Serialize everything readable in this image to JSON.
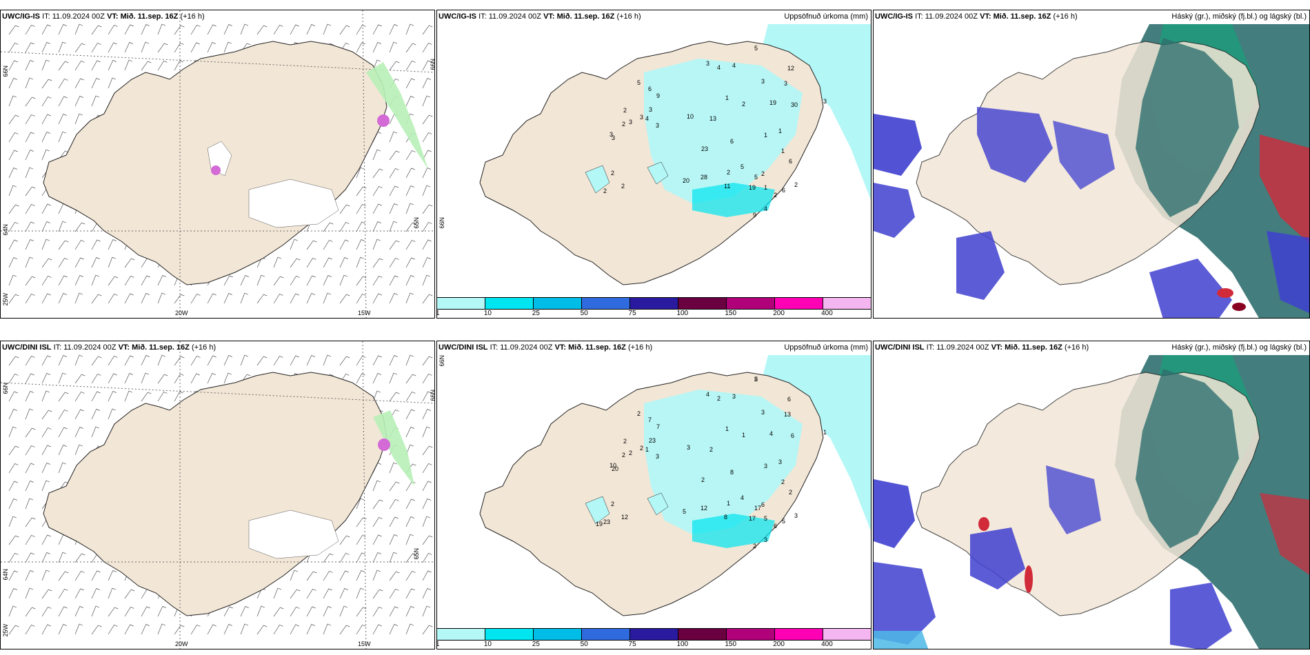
{
  "rows": [
    {
      "model": "UWC/IG-IS",
      "panels": [
        {
          "kind": "wind",
          "model": "UWC/IG-IS",
          "it_label": "IT:",
          "it": "11.09.2024 00Z",
          "vt_label": "VT:",
          "vt": "Mið. 11.sep. 16Z",
          "lead": "(+16 h)",
          "right_title": "",
          "lat_labels": [
            "66N",
            "64N",
            "65N",
            "66N"
          ],
          "lon_labels": [
            "20W",
            "15W"
          ],
          "side_label": "25W"
        },
        {
          "kind": "precip",
          "model": "UWC/IG-IS",
          "it_label": "IT:",
          "it": "11.09.2024 00Z",
          "vt_label": "VT:",
          "vt": "Mið. 11.sep. 16Z",
          "lead": "(+16 h)",
          "right_title": "Uppsöfnuð úrkoma (mm)",
          "precip_values": [
            "5",
            "3",
            "4",
            "4",
            "1",
            "2",
            "3",
            "3",
            "5",
            "6",
            "9",
            "12",
            "2",
            "3",
            "3",
            "4",
            "2",
            "3",
            "3",
            "3",
            "10",
            "3",
            "13",
            "6",
            "19",
            "30",
            "3",
            "1",
            "1",
            "6",
            "5",
            "2",
            "1",
            "23",
            "2",
            "5",
            "1",
            "2",
            "6",
            "2",
            "9",
            "4",
            "2",
            "20",
            "28",
            "11",
            "19",
            "2",
            "2"
          ],
          "lat_labels": [
            "66N"
          ]
        },
        {
          "kind": "cloud",
          "model": "UWC/IG-IS",
          "it_label": "IT:",
          "it": "11.09.2024 00Z",
          "vt_label": "VT:",
          "vt": "Mið. 11.sep. 16Z",
          "lead": "(+16 h)",
          "right_title": "Háský (gr.), miðský (fj.bl.) og lágský (bl.)"
        }
      ]
    },
    {
      "model": "UWC/DINI ISL",
      "panels": [
        {
          "kind": "wind",
          "model": "UWC/DINI ISL",
          "it_label": "IT:",
          "it": "11.09.2024 00Z",
          "vt_label": "VT:",
          "vt": "Mið. 11.sep. 16Z",
          "lead": "(+16 h)",
          "right_title": "",
          "lat_labels": [
            "66N",
            "64N",
            "65N",
            "66N"
          ],
          "lon_labels": [
            "20W",
            "15W"
          ],
          "side_label": "25W"
        },
        {
          "kind": "precip",
          "model": "UWC/DINI ISL",
          "it_label": "IT:",
          "it": "11.09.2024 00Z",
          "vt_label": "VT:",
          "vt": "Mið. 11.sep. 16Z",
          "lead": "(+16 h)",
          "right_title": "Uppsöfnuð úrkoma (mm)",
          "precip_values": [
            "5",
            "4",
            "2",
            "3",
            "1",
            "1",
            "3",
            "13",
            "2",
            "7",
            "7",
            "6",
            "2",
            "2",
            "2",
            "1",
            "2",
            "10",
            "20",
            "23",
            "3",
            "3",
            "2",
            "8",
            "4",
            "6",
            "1",
            "3",
            "2",
            "2",
            "4",
            "6",
            "3",
            "2",
            "1",
            "17",
            "5",
            "6",
            "5",
            "3",
            "2",
            "3",
            "2",
            "5",
            "12",
            "8",
            "17",
            "23",
            "12",
            "19",
            "2"
          ],
          "lat_labels": [
            "66N"
          ]
        },
        {
          "kind": "cloud",
          "model": "UWC/DINI ISL",
          "it_label": "IT:",
          "it": "11.09.2024 00Z",
          "vt_label": "VT:",
          "vt": "Mið. 11.sep. 16Z",
          "lead": "(+16 h)",
          "right_title": "Háský (gr.), miðský (fj.bl.) og lágský (bl.)"
        }
      ]
    }
  ],
  "colorbar": {
    "colors": [
      "#b3f7f7",
      "#00e5f0",
      "#00bde8",
      "#2f6bdf",
      "#2a1aa0",
      "#6a0040",
      "#b0007a",
      "#ff00b4",
      "#f4b6f0"
    ],
    "labels": [
      "1",
      "10",
      "25",
      "50",
      "75",
      "100",
      "150",
      "200",
      "400"
    ]
  },
  "colors": {
    "land": "#f2e6d6",
    "precip_light": "#b3f7f7",
    "precip_mid": "#00e5f0",
    "cloud_low": "#3f3fd0",
    "cloud_mid": "#1f9a7a",
    "cloud_high": "#d12b3a"
  }
}
